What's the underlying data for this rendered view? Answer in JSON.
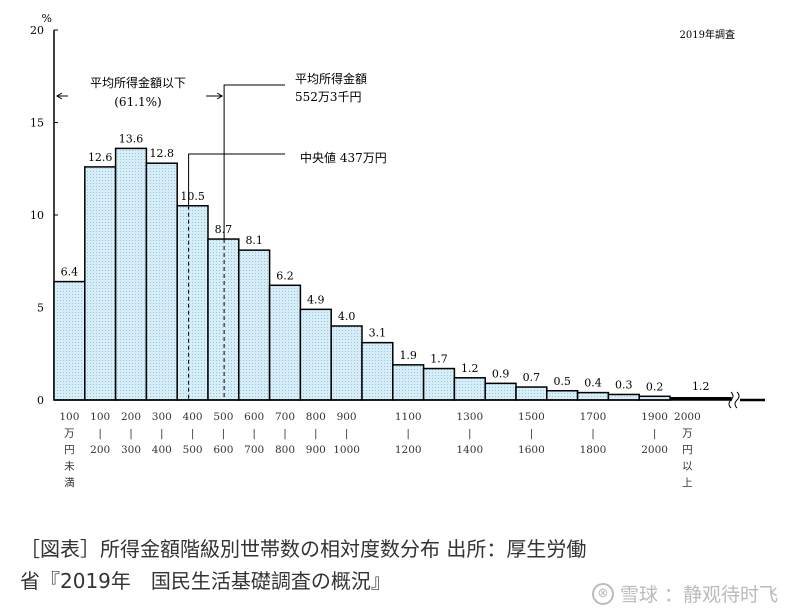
{
  "chart_data": {
    "type": "bar",
    "title": "",
    "survey_note": "2019年調査",
    "ylabel": "%",
    "ylim": [
      0,
      20
    ],
    "yticks": [
      0,
      5,
      10,
      15,
      20
    ],
    "categories": [
      [
        "100",
        "万",
        "円",
        "未",
        "満"
      ],
      [
        "100",
        "|",
        "200"
      ],
      [
        "200",
        "|",
        "300"
      ],
      [
        "300",
        "|",
        "400"
      ],
      [
        "400",
        "|",
        "500"
      ],
      [
        "500",
        "|",
        "600"
      ],
      [
        "600",
        "|",
        "700"
      ],
      [
        "700",
        "|",
        "800"
      ],
      [
        "800",
        "|",
        "900"
      ],
      [
        "900",
        "|",
        "1000"
      ],
      [
        "1000"
      ],
      [
        "1100",
        "|",
        "1200"
      ],
      [
        "1200"
      ],
      [
        "1300",
        "|",
        "1400"
      ],
      [
        "1400"
      ],
      [
        "1500",
        "|",
        "1600"
      ],
      [
        "1600"
      ],
      [
        "1700",
        "|",
        "1800"
      ],
      [
        "1800"
      ],
      [
        "1900",
        "|",
        "2000"
      ],
      [
        "2000",
        "万",
        "円",
        "以",
        "上"
      ]
    ],
    "category_labels_shown": [
      true,
      true,
      true,
      true,
      true,
      true,
      true,
      true,
      true,
      true,
      false,
      true,
      false,
      true,
      false,
      true,
      false,
      true,
      false,
      true,
      true
    ],
    "values": [
      6.4,
      12.6,
      13.6,
      12.8,
      10.5,
      8.7,
      8.1,
      6.2,
      4.9,
      4.0,
      3.1,
      1.9,
      1.7,
      1.2,
      0.9,
      0.7,
      0.5,
      0.4,
      0.3,
      0.2,
      1.2
    ],
    "value_labels": [
      "6.4",
      "12.6",
      "13.6",
      "12.8",
      "10.5",
      "8.7",
      "8.1",
      "6.2",
      "4.9",
      "4.0",
      "3.1",
      "1.9",
      "1.7",
      "1.2",
      "0.9",
      "0.7",
      "0.5",
      "0.4",
      "0.3",
      "0.2",
      "1.2"
    ],
    "bar_color": "#d6eef8",
    "annotations": {
      "below_mean_label": "平均所得金額以下",
      "below_mean_pct": "(61.1%)",
      "mean_label": "平均所得金額",
      "mean_value": "552万3千円",
      "median_label": "中央値  437万円",
      "mean_income": 552.3,
      "median_income": 437
    }
  },
  "caption": {
    "line1": "［図表］所得金額階級別世帯数の相対度数分布 出所：厚生労働",
    "line2": "省『2019年　国民生活基礎調査の概況』"
  },
  "watermark": {
    "site": "雪球",
    "author": "：静观待时飞"
  }
}
